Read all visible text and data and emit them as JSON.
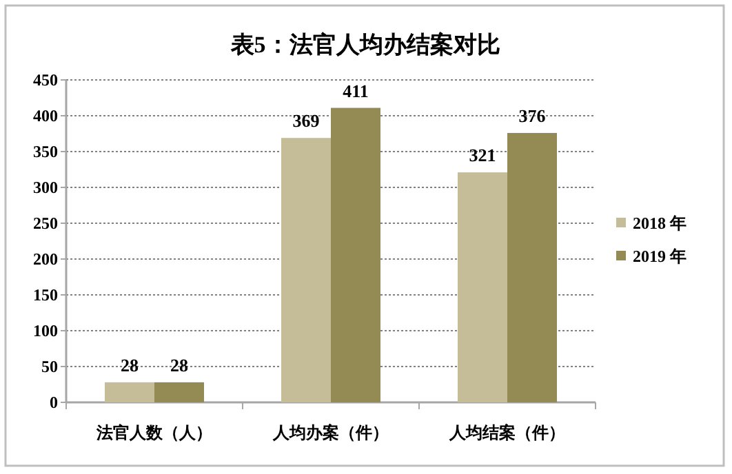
{
  "chart_data": {
    "type": "bar",
    "title": "表5：法官人均办结案对比",
    "categories": [
      "法官人数（人）",
      "人均办案（件）",
      "人均结案（件）"
    ],
    "series": [
      {
        "name": "2018 年",
        "color": "#c4bd97",
        "values": [
          28,
          369,
          321
        ]
      },
      {
        "name": "2019 年",
        "color": "#948a54",
        "values": [
          28,
          411,
          376
        ]
      }
    ],
    "ylim": [
      0,
      450
    ],
    "yticks": [
      0,
      50,
      100,
      150,
      200,
      250,
      300,
      350,
      400,
      450
    ],
    "grid": "y",
    "legend": "right",
    "data_labels": true
  }
}
